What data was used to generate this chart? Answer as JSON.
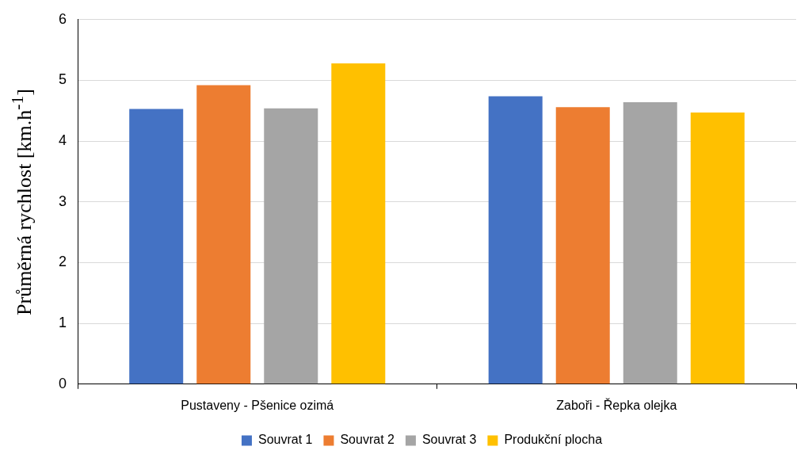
{
  "chart_data": {
    "type": "bar",
    "ylabel": "Průměrná rychlost [km.h$^{-1}$]",
    "categories": [
      "Pustaveny - Pšenice ozimá",
      "Zaboři - Řepka olejka"
    ],
    "series": [
      {
        "name": "Souvrat 1",
        "color": "#4472c4",
        "values": [
          4.53,
          4.74
        ]
      },
      {
        "name": "Souvrat 2",
        "color": "#ed7d31",
        "values": [
          4.92,
          4.56
        ]
      },
      {
        "name": "Souvrat 3",
        "color": "#a5a5a5",
        "values": [
          4.54,
          4.64
        ]
      },
      {
        "name": "Produkční plocha",
        "color": "#ffc000",
        "values": [
          5.28,
          4.47
        ]
      }
    ],
    "ylim": [
      0,
      6
    ],
    "yticks": [
      0,
      1,
      2,
      3,
      4,
      5,
      6
    ],
    "grid": "y",
    "legend": "bottom"
  }
}
